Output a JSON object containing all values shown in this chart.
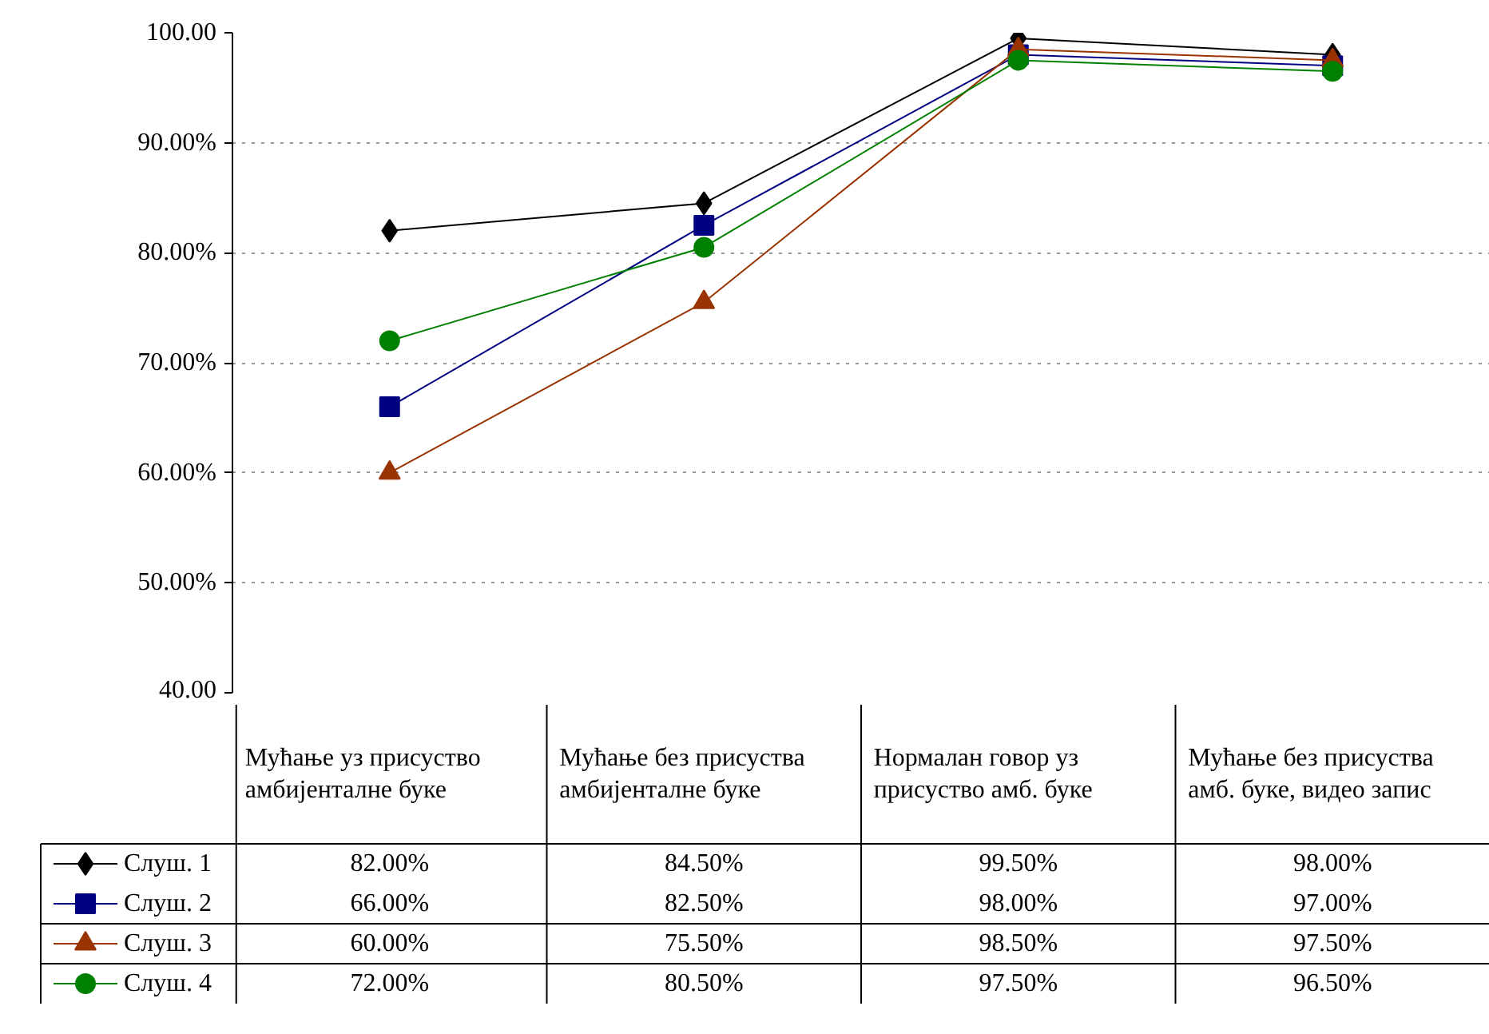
{
  "chart_data": {
    "type": "line",
    "categories": [
      "Мућање уз присуство амбијенталне буке",
      "Мућање без присуства амбијенталне буке",
      "Нормалан говор уз присуство амб. буке",
      "Мућање без присуства амб. буке, видео запис"
    ],
    "series": [
      {
        "name": "Слуш. 1",
        "color": "#000000",
        "marker": "diamond",
        "values": [
          82,
          84.5,
          99.5,
          98
        ],
        "value_labels": [
          "82.00%",
          "84.50%",
          "99.50%",
          "98.00%"
        ]
      },
      {
        "name": "Слуш. 2",
        "color": "#000080",
        "marker": "square",
        "values": [
          66,
          82.5,
          98,
          97
        ],
        "value_labels": [
          "66.00%",
          "82.50%",
          "98.00%",
          "97.00%"
        ]
      },
      {
        "name": "Слуш. 3",
        "color": "#993300",
        "marker": "triangle",
        "values": [
          60,
          75.5,
          98.5,
          97.5
        ],
        "value_labels": [
          "60.00%",
          "75.50%",
          "98.50%",
          "97.50%"
        ]
      },
      {
        "name": "Слуш. 4",
        "color": "#008000",
        "marker": "circle",
        "values": [
          72,
          80.5,
          97.5,
          96.5
        ],
        "value_labels": [
          "72.00%",
          "80.50%",
          "97.50%",
          "96.50%"
        ]
      }
    ],
    "ylim": [
      40,
      100
    ],
    "yticks": [
      {
        "value": 40,
        "label": "40.00"
      },
      {
        "value": 50,
        "label": "50.00%"
      },
      {
        "value": 60,
        "label": "60.00%"
      },
      {
        "value": 70,
        "label": "70.00%"
      },
      {
        "value": 80,
        "label": "80.00%"
      },
      {
        "value": 90,
        "label": "90.00%"
      },
      {
        "value": 100,
        "label": "100.00"
      }
    ],
    "grid": "y",
    "legend": "bottom left",
    "line_style": "solid"
  }
}
